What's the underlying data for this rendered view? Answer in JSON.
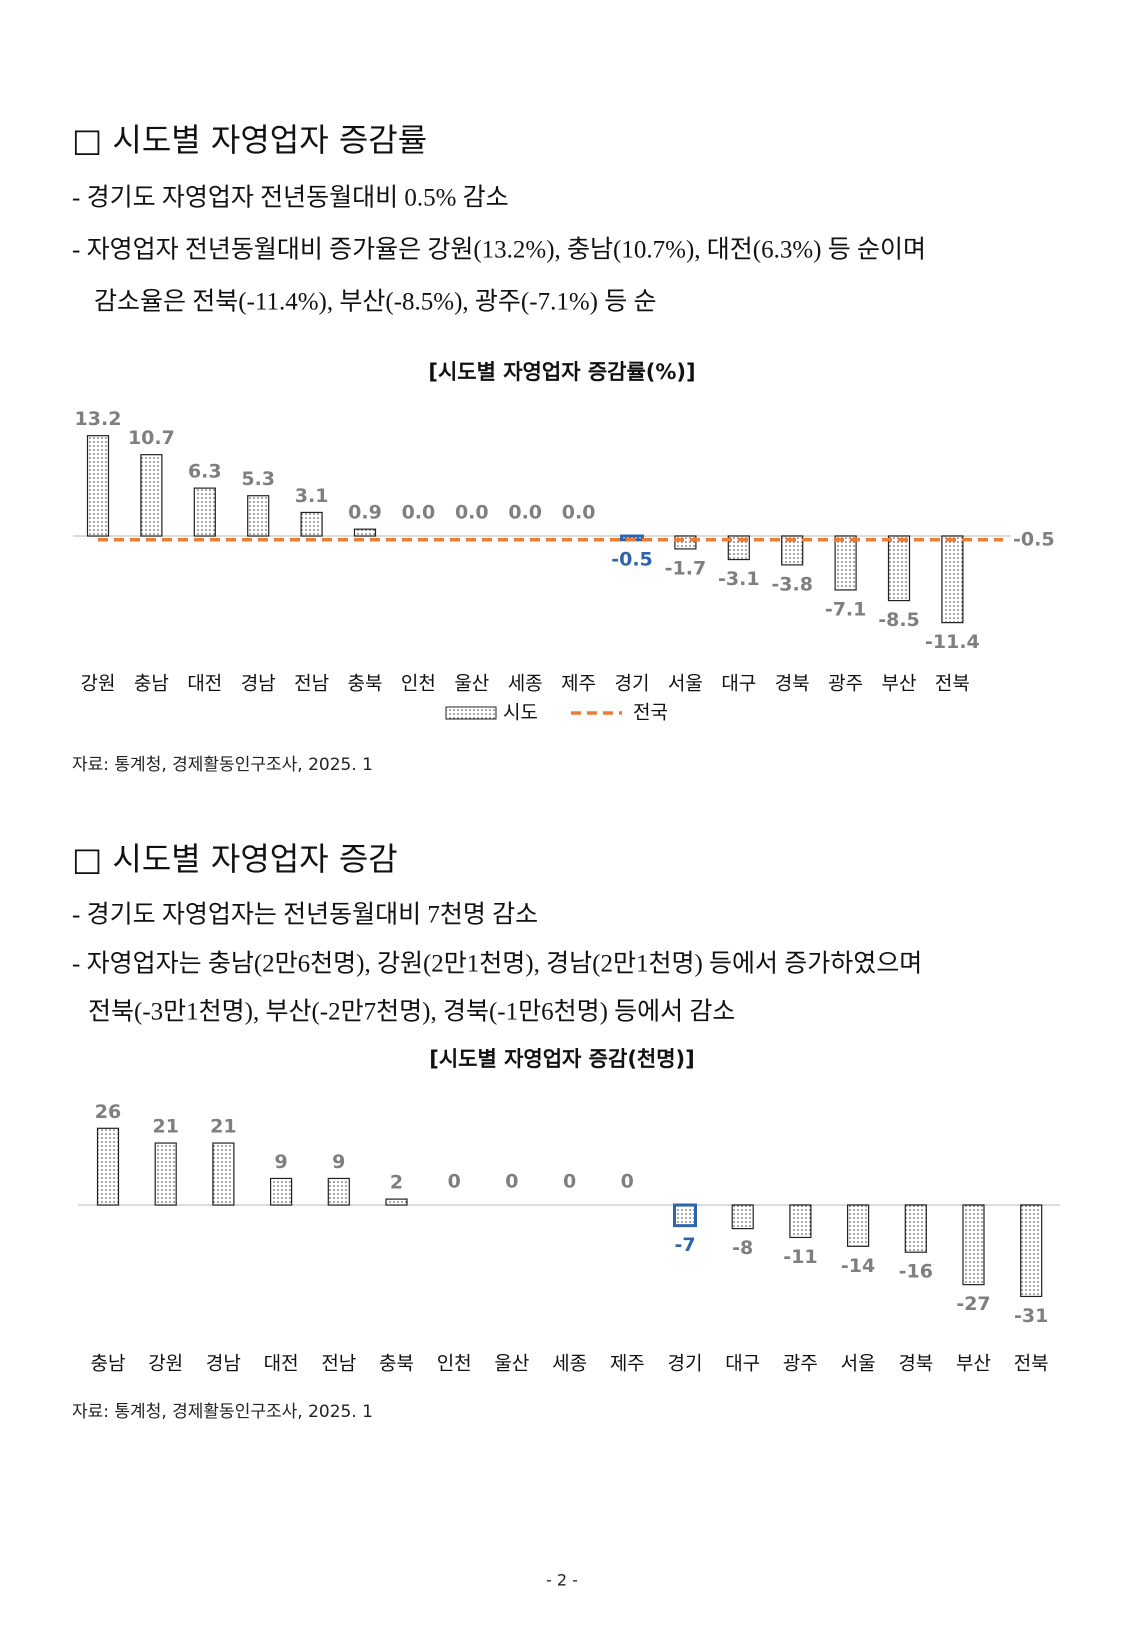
{
  "sections": [
    {
      "heading": "□ 시도별 자영업자 증감률",
      "lines": [
        "- 경기도 자영업자 전년동월대비 0.5% 감소",
        "- 자영업자 전년동월대비 증가율은 강원(13.2%), 충남(10.7%), 대전(6.3%) 등 순이며",
        "감소율은 전북(-11.4%), 부산(-8.5%), 광주(-7.1%) 등 순"
      ],
      "source": "자료: 통계청, 경제활동인구조사, 2025. 1"
    },
    {
      "heading": "□ 시도별 자영업자 증감",
      "lines": [
        "- 경기도 자영업자는 전년동월대비 7천명 감소",
        "- 자영업자는 충남(2만6천명), 강원(2만1천명), 경남(2만1천명) 등에서 증가하였으며",
        "전북(-3만1천명), 부산(-2만7천명), 경북(-1만6천명) 등에서 감소"
      ],
      "source": "자료: 통계청, 경제활동인구조사, 2025. 1"
    }
  ],
  "chart_data": [
    {
      "type": "bar",
      "title": "[시도별 자영업자  증감률(%)]",
      "categories": [
        "강원",
        "충남",
        "대전",
        "경남",
        "전남",
        "충북",
        "인천",
        "울산",
        "세종",
        "제주",
        "경기",
        "서울",
        "대구",
        "경북",
        "광주",
        "부산",
        "전북"
      ],
      "series": [
        {
          "name": "시도",
          "values": [
            13.2,
            10.7,
            6.3,
            5.3,
            3.1,
            0.9,
            0,
            0,
            0,
            0,
            -0.5,
            -1.7,
            -3.1,
            -3.8,
            -7.1,
            -8.5,
            -11.4
          ],
          "value_labels": [
            "13.2",
            "10.7",
            "6.3",
            "5.3",
            "3.1",
            "0.9",
            "0.0",
            "0.0",
            "0.0",
            "0.0",
            "-0.5",
            "-1.7",
            "-3.1",
            "-3.8",
            "-7.1",
            "-8.5",
            "-11.4"
          ]
        },
        {
          "name": "전국",
          "color": "#ed7d31",
          "value": -0.5
        }
      ],
      "highlight": "경기",
      "highlight_color": "#2e64ac",
      "legend": true
    },
    {
      "type": "bar",
      "title": "[시도별 자영업자 증감(천명)]",
      "categories": [
        "충남",
        "강원",
        "경남",
        "대전",
        "전남",
        "충북",
        "인천",
        "울산",
        "세종",
        "제주",
        "경기",
        "대구",
        "광주",
        "서울",
        "경북",
        "부산",
        "전북"
      ],
      "series": [
        {
          "values": [
            26,
            21,
            21,
            9,
            9,
            2,
            0,
            0,
            0,
            0,
            -7,
            -8,
            -11,
            -14,
            -16,
            -27,
            -31
          ]
        }
      ],
      "highlight": "경기",
      "highlight_color": "#2e64ac",
      "legend": false
    }
  ],
  "page_number": "- 2 -"
}
